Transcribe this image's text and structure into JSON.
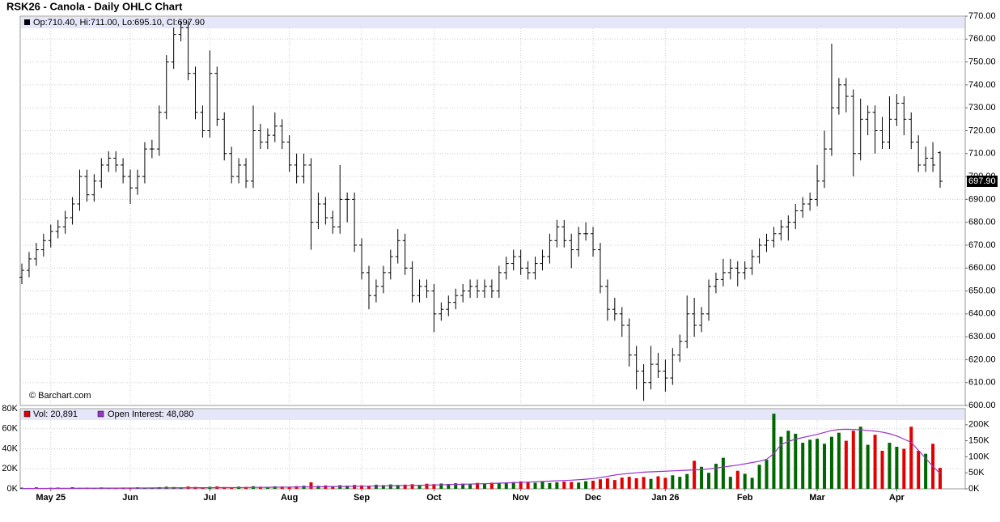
{
  "chart_data": {
    "type": "ohlc",
    "title": "RSK26 - Canola - Daily OHLC Chart",
    "legend_text": "Op:710.40, Hi:711.00, Lo:695.10, Cl:697.90",
    "watermark": "© Barchart.com",
    "last_value_label": "697.90",
    "bar_color": "#000000",
    "up_color": "#006600",
    "down_color": "#e00000",
    "oi_color": "#9933cc",
    "ylim": [
      600,
      770
    ],
    "yticks": [
      {
        "value": 600,
        "label": "600.00"
      },
      {
        "value": 610,
        "label": "610.00"
      },
      {
        "value": 620,
        "label": "620.00"
      },
      {
        "value": 630,
        "label": "630.00"
      },
      {
        "value": 640,
        "label": "640.00"
      },
      {
        "value": 650,
        "label": "650.00"
      },
      {
        "value": 660,
        "label": "660.00"
      },
      {
        "value": 670,
        "label": "670.00"
      },
      {
        "value": 680,
        "label": "680.00"
      },
      {
        "value": 690,
        "label": "690.00"
      },
      {
        "value": 700,
        "label": "700.00"
      },
      {
        "value": 710,
        "label": "710.00"
      },
      {
        "value": 720,
        "label": "720.00"
      },
      {
        "value": 730,
        "label": "730.00"
      },
      {
        "value": 740,
        "label": "740.00"
      },
      {
        "value": 750,
        "label": "750.00"
      },
      {
        "value": 760,
        "label": "760.00"
      },
      {
        "value": 770,
        "label": "770.00"
      }
    ],
    "grid": true,
    "categories": [
      null,
      null,
      null,
      null,
      "May 25",
      null,
      null,
      null,
      null,
      null,
      null,
      null,
      null,
      null,
      null,
      "Jun",
      null,
      null,
      null,
      null,
      null,
      null,
      null,
      null,
      null,
      null,
      "Jul",
      null,
      null,
      null,
      null,
      null,
      null,
      null,
      null,
      null,
      null,
      "Aug",
      null,
      null,
      null,
      null,
      null,
      null,
      null,
      null,
      null,
      "Sep",
      null,
      null,
      null,
      null,
      null,
      null,
      null,
      null,
      null,
      "Oct",
      null,
      null,
      null,
      null,
      null,
      null,
      null,
      null,
      null,
      null,
      null,
      "Nov",
      null,
      null,
      null,
      null,
      null,
      null,
      null,
      null,
      null,
      "Dec",
      null,
      null,
      null,
      null,
      null,
      null,
      null,
      null,
      null,
      "Jan 26",
      null,
      null,
      null,
      null,
      null,
      null,
      null,
      null,
      null,
      null,
      "Feb",
      null,
      null,
      null,
      null,
      null,
      null,
      null,
      null,
      null,
      "Mar",
      null,
      null,
      null,
      null,
      null,
      null,
      null,
      null,
      null,
      null,
      "Apr",
      null,
      null,
      null,
      null,
      null,
      null
    ],
    "ohlc": [
      [
        656,
        662,
        653,
        659
      ],
      [
        659,
        667,
        656,
        664
      ],
      [
        664,
        671,
        661,
        668
      ],
      [
        668,
        675,
        665,
        672
      ],
      [
        672,
        679,
        669,
        676
      ],
      [
        676,
        681,
        673,
        678
      ],
      [
        678,
        685,
        675,
        682
      ],
      [
        682,
        691,
        679,
        688
      ],
      [
        688,
        703,
        685,
        700
      ],
      [
        700,
        703,
        689,
        692
      ],
      [
        692,
        701,
        689,
        698
      ],
      [
        698,
        708,
        695,
        705
      ],
      [
        705,
        711,
        702,
        708
      ],
      [
        708,
        711,
        702,
        705
      ],
      [
        705,
        708,
        697,
        700
      ],
      [
        700,
        703,
        688,
        695
      ],
      [
        695,
        703,
        692,
        700
      ],
      [
        700,
        715,
        697,
        712
      ],
      [
        712,
        716,
        708,
        712
      ],
      [
        712,
        731,
        709,
        728
      ],
      [
        728,
        753,
        725,
        750
      ],
      [
        750,
        765,
        747,
        762
      ],
      [
        762,
        768,
        759,
        765
      ],
      [
        765,
        768,
        742,
        745
      ],
      [
        745,
        748,
        725,
        728
      ],
      [
        728,
        731,
        717,
        720
      ],
      [
        720,
        755,
        717,
        745
      ],
      [
        745,
        748,
        722,
        725
      ],
      [
        725,
        728,
        707,
        710
      ],
      [
        710,
        713,
        697,
        700
      ],
      [
        700,
        708,
        697,
        705
      ],
      [
        705,
        708,
        695,
        698
      ],
      [
        698,
        731,
        695,
        720
      ],
      [
        720,
        723,
        712,
        715
      ],
      [
        715,
        721,
        712,
        718
      ],
      [
        718,
        728,
        715,
        722
      ],
      [
        722,
        725,
        712,
        715
      ],
      [
        715,
        718,
        702,
        705
      ],
      [
        705,
        710,
        697,
        700
      ],
      [
        700,
        710,
        697,
        705
      ],
      [
        705,
        708,
        668,
        680
      ],
      [
        680,
        693,
        677,
        688
      ],
      [
        688,
        691,
        679,
        682
      ],
      [
        682,
        685,
        675,
        678
      ],
      [
        678,
        705,
        675,
        690
      ],
      [
        690,
        693,
        680,
        690
      ],
      [
        690,
        693,
        667,
        670
      ],
      [
        670,
        673,
        655,
        658
      ],
      [
        658,
        661,
        642,
        648
      ],
      [
        648,
        655,
        645,
        652
      ],
      [
        652,
        661,
        649,
        658
      ],
      [
        658,
        668,
        655,
        665
      ],
      [
        665,
        677,
        662,
        672
      ],
      [
        672,
        675,
        657,
        660
      ],
      [
        660,
        663,
        645,
        648
      ],
      [
        648,
        655,
        645,
        652
      ],
      [
        652,
        655,
        647,
        650
      ],
      [
        650,
        653,
        632,
        640
      ],
      [
        640,
        645,
        637,
        642
      ],
      [
        642,
        648,
        639,
        645
      ],
      [
        645,
        651,
        642,
        648
      ],
      [
        648,
        653,
        645,
        650
      ],
      [
        650,
        655,
        647,
        652
      ],
      [
        652,
        655,
        647,
        650
      ],
      [
        650,
        655,
        647,
        652
      ],
      [
        652,
        655,
        647,
        650
      ],
      [
        650,
        661,
        647,
        658
      ],
      [
        658,
        665,
        655,
        662
      ],
      [
        662,
        668,
        659,
        665
      ],
      [
        665,
        668,
        657,
        660
      ],
      [
        660,
        663,
        655,
        658
      ],
      [
        658,
        665,
        655,
        662
      ],
      [
        662,
        668,
        659,
        665
      ],
      [
        665,
        675,
        662,
        672
      ],
      [
        672,
        681,
        669,
        678
      ],
      [
        678,
        681,
        669,
        672
      ],
      [
        672,
        675,
        660,
        668
      ],
      [
        668,
        678,
        665,
        675
      ],
      [
        675,
        680,
        672,
        675
      ],
      [
        675,
        678,
        665,
        668
      ],
      [
        668,
        671,
        649,
        652
      ],
      [
        652,
        655,
        637,
        642
      ],
      [
        642,
        647,
        637,
        640
      ],
      [
        640,
        643,
        630,
        635
      ],
      [
        635,
        638,
        617,
        622
      ],
      [
        622,
        626,
        607,
        615
      ],
      [
        615,
        618,
        602,
        610
      ],
      [
        610,
        626,
        607,
        618
      ],
      [
        618,
        623,
        612,
        615
      ],
      [
        615,
        620,
        606,
        612
      ],
      [
        612,
        625,
        609,
        622
      ],
      [
        622,
        631,
        619,
        628
      ],
      [
        628,
        648,
        625,
        640
      ],
      [
        640,
        647,
        630,
        635
      ],
      [
        635,
        643,
        632,
        640
      ],
      [
        640,
        655,
        637,
        652
      ],
      [
        652,
        658,
        649,
        655
      ],
      [
        655,
        664,
        652,
        658
      ],
      [
        658,
        664,
        655,
        660
      ],
      [
        660,
        663,
        652,
        658
      ],
      [
        658,
        663,
        655,
        660
      ],
      [
        660,
        668,
        657,
        665
      ],
      [
        665,
        673,
        662,
        670
      ],
      [
        670,
        675,
        667,
        672
      ],
      [
        672,
        678,
        669,
        675
      ],
      [
        675,
        681,
        672,
        678
      ],
      [
        678,
        683,
        672,
        680
      ],
      [
        680,
        688,
        677,
        685
      ],
      [
        685,
        691,
        682,
        688
      ],
      [
        688,
        693,
        685,
        690
      ],
      [
        690,
        705,
        687,
        698
      ],
      [
        698,
        720,
        695,
        712
      ],
      [
        712,
        758,
        709,
        730
      ],
      [
        730,
        743,
        727,
        740
      ],
      [
        740,
        743,
        728,
        735
      ],
      [
        735,
        738,
        700,
        710
      ],
      [
        710,
        734,
        707,
        725
      ],
      [
        725,
        731,
        718,
        728
      ],
      [
        728,
        731,
        710,
        720
      ],
      [
        720,
        726,
        712,
        715
      ],
      [
        715,
        735,
        712,
        725
      ],
      [
        725,
        736,
        722,
        732
      ],
      [
        732,
        735,
        718,
        725
      ],
      [
        725,
        728,
        712,
        715
      ],
      [
        715,
        718,
        702,
        705
      ],
      [
        705,
        713,
        702,
        708
      ],
      [
        708,
        715,
        702,
        705
      ],
      [
        710.4,
        711,
        695.1,
        697.9
      ]
    ],
    "volume_legend": "Vol: 20,891",
    "oi_legend": "Open Interest: 48,080",
    "volume": [
      1200,
      900,
      1500,
      800,
      1100,
      1300,
      700,
      1600,
      1000,
      1200,
      900,
      1400,
      1100,
      800,
      1300,
      1000,
      1500,
      1200,
      900,
      1700,
      2100,
      1800,
      1500,
      2300,
      1900,
      1600,
      2000,
      2400,
      1800,
      1500,
      2200,
      1900,
      2600,
      2100,
      1800,
      2500,
      2300,
      2000,
      2700,
      3100,
      6500,
      3000,
      3400,
      2800,
      3600,
      3200,
      3900,
      3500,
      3000,
      4100,
      3700,
      4400,
      3900,
      4200,
      4600,
      4000,
      5100,
      4700,
      5300,
      4900,
      5600,
      5200,
      4800,
      5900,
      5400,
      6100,
      5700,
      6300,
      6800,
      7400,
      6600,
      6100,
      7000,
      5800,
      6500,
      7200,
      6900,
      6300,
      7600,
      8100,
      9500,
      10400,
      8800,
      11200,
      12000,
      10600,
      11800,
      9900,
      12500,
      11000,
      13500,
      12000,
      14800,
      28000,
      22000,
      16000,
      25000,
      31000,
      12000,
      18000,
      15000,
      11000,
      24000,
      29000,
      75000,
      52000,
      58000,
      55000,
      46000,
      49000,
      50000,
      45000,
      52000,
      56000,
      48000,
      58000,
      62000,
      44000,
      54000,
      38000,
      46000,
      42000,
      40000,
      62000,
      38000,
      35000,
      45000,
      20891
    ],
    "open_interest": [
      1000,
      1100,
      1200,
      1300,
      1400,
      1500,
      1600,
      1700,
      1800,
      1900,
      2000,
      2100,
      2200,
      2300,
      2400,
      2500,
      2600,
      2700,
      2800,
      2900,
      3000,
      3100,
      3200,
      3300,
      3400,
      3500,
      3600,
      3700,
      3800,
      3900,
      4000,
      4200,
      4400,
      4600,
      4800,
      5000,
      5200,
      5400,
      5600,
      5800,
      6000,
      6300,
      6600,
      6900,
      7200,
      7500,
      7800,
      8100,
      8400,
      8700,
      9000,
      9400,
      9800,
      10200,
      10600,
      11000,
      11500,
      12000,
      12500,
      13000,
      13600,
      14200,
      14800,
      15400,
      16000,
      16800,
      17600,
      18400,
      19200,
      20000,
      21000,
      22000,
      23000,
      24000,
      25000,
      26000,
      27000,
      28500,
      30000,
      32000,
      35000,
      39000,
      43000,
      46000,
      48000,
      50000,
      52000,
      53000,
      54000,
      55000,
      56000,
      57000,
      58000,
      59000,
      60000,
      62000,
      65000,
      68000,
      71000,
      74000,
      78000,
      82000,
      86000,
      92000,
      110000,
      138000,
      148000,
      155000,
      160000,
      165000,
      170000,
      176000,
      182000,
      185000,
      186000,
      185000,
      184000,
      182000,
      180000,
      177000,
      172000,
      165000,
      155000,
      145000,
      120000,
      95000,
      70000,
      48080
    ],
    "vol_ylim": [
      0,
      80000
    ],
    "vol_yticks": [
      {
        "value": 0,
        "label": "0K"
      },
      {
        "value": 20000,
        "label": "20K"
      },
      {
        "value": 40000,
        "label": "40K"
      },
      {
        "value": 60000,
        "label": "60K"
      },
      {
        "value": 80000,
        "label": "80K"
      }
    ],
    "oi_ylim": [
      0,
      250000
    ],
    "oi_yticks": [
      {
        "value": 0,
        "label": "0K"
      },
      {
        "value": 50000,
        "label": "50K"
      },
      {
        "value": 100000,
        "label": "100K"
      },
      {
        "value": 150000,
        "label": "150K"
      },
      {
        "value": 200000,
        "label": "200K"
      }
    ]
  }
}
